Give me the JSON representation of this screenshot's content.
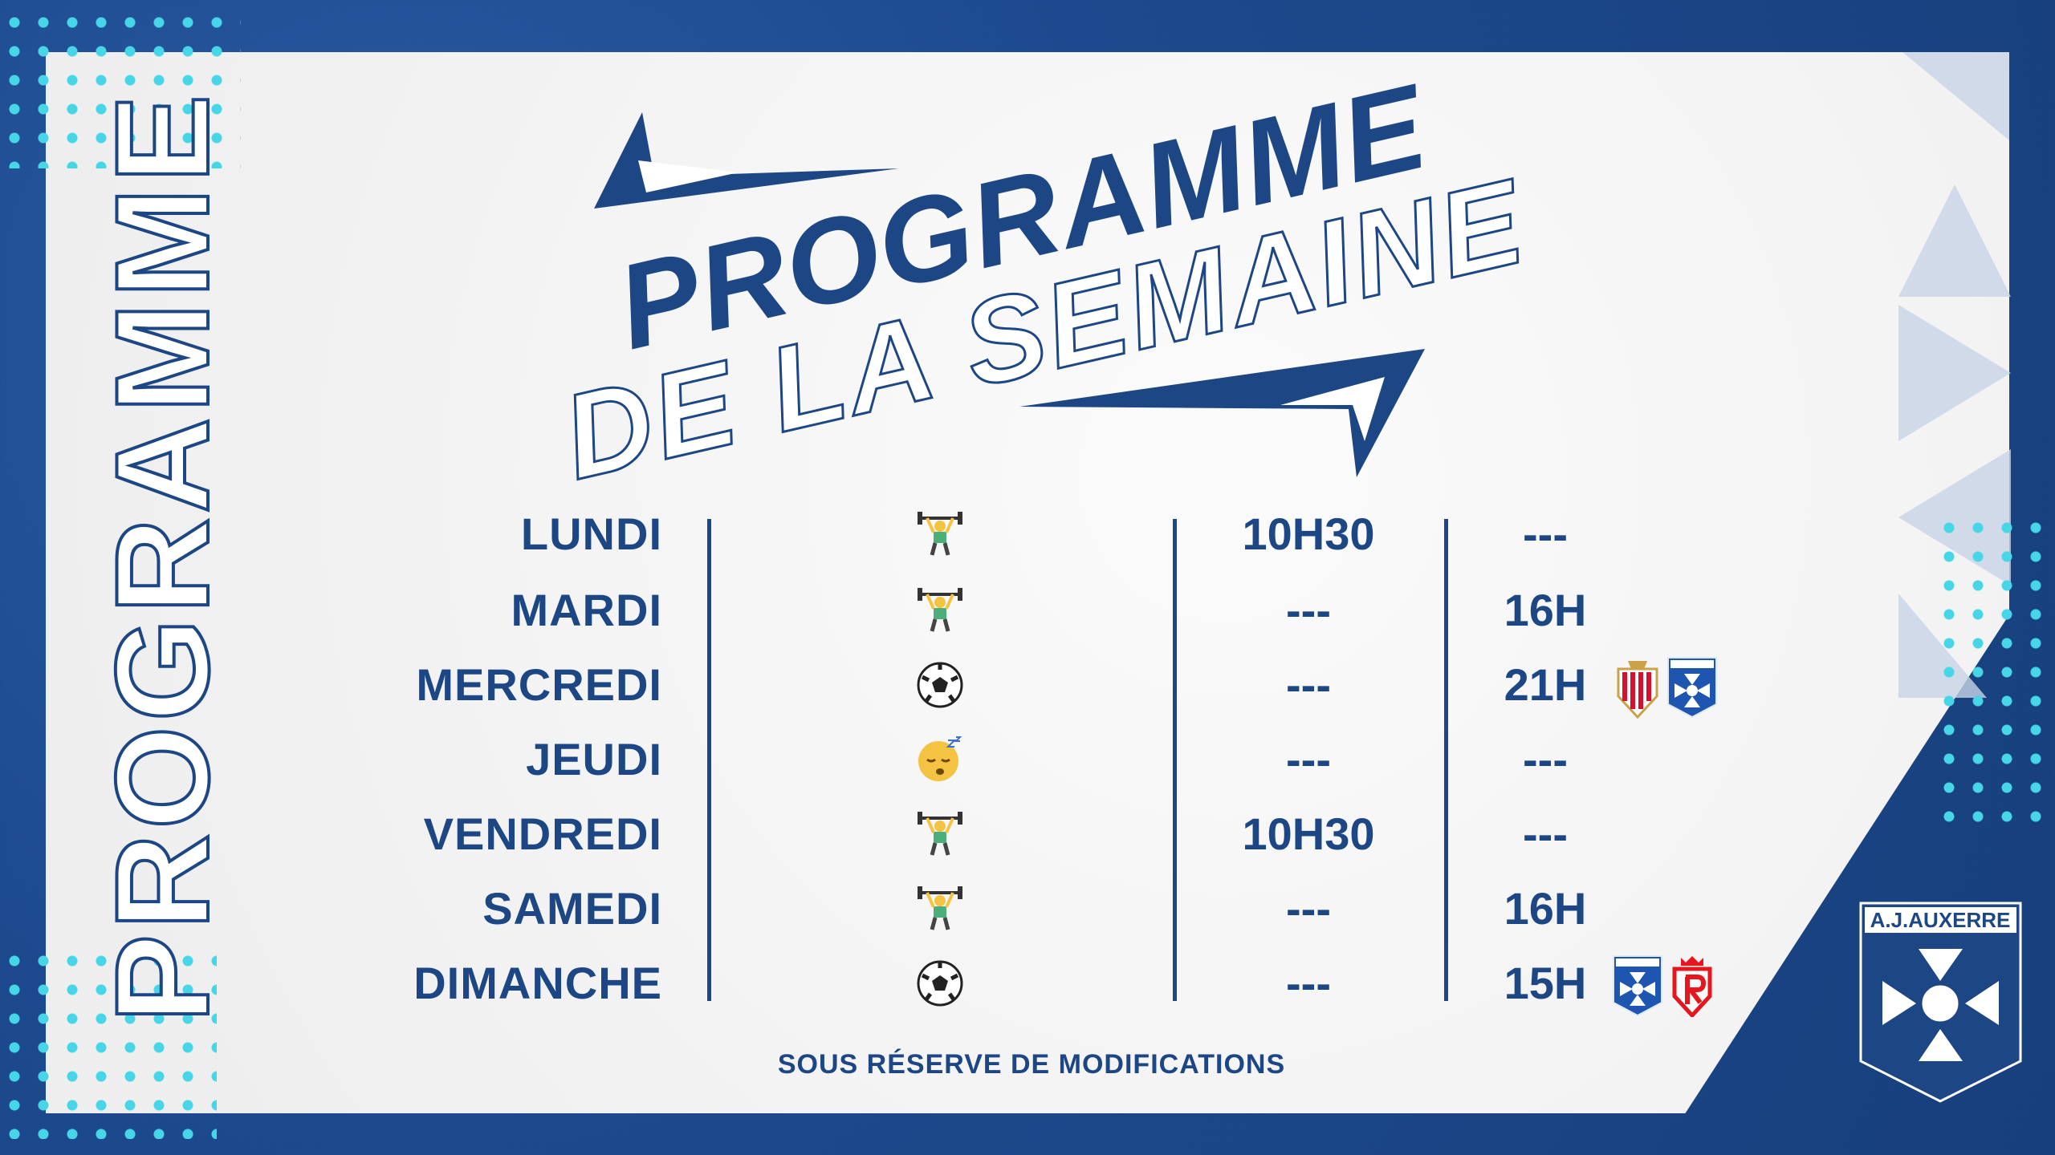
{
  "side_title": "PROGRAMME",
  "title": {
    "line1": "PROGRAMME",
    "line2": "DE LA SEMAINE"
  },
  "rows": [
    {
      "day": "LUNDI",
      "activity_icon": "weightlifting-icon",
      "morning": "10H30",
      "afternoon": "---",
      "logos": []
    },
    {
      "day": "MARDI",
      "activity_icon": "weightlifting-icon",
      "morning": "---",
      "afternoon": "16H",
      "logos": []
    },
    {
      "day": "MERCREDI",
      "activity_icon": "soccer-ball-icon",
      "morning": "---",
      "afternoon": "21H",
      "logos": [
        "AS Monaco",
        "A.J.Auxerre"
      ]
    },
    {
      "day": "JEUDI",
      "activity_icon": "sleeping-face-icon",
      "morning": "---",
      "afternoon": "---",
      "logos": []
    },
    {
      "day": "VENDREDI",
      "activity_icon": "weightlifting-icon",
      "morning": "10H30",
      "afternoon": "---",
      "logos": []
    },
    {
      "day": "SAMEDI",
      "activity_icon": "weightlifting-icon",
      "morning": "---",
      "afternoon": "16H",
      "logos": []
    },
    {
      "day": "DIMANCHE",
      "activity_icon": "soccer-ball-icon",
      "morning": "---",
      "afternoon": "15H",
      "logos": [
        "A.J.Auxerre",
        "Stade de Reims"
      ]
    }
  ],
  "footer": "SOUS RÉSERVE DE MODIFICATIONS",
  "club_logo_text": "A.J.AUXERRE",
  "colors": {
    "navy": "#1d4684",
    "background_blue": "#1d4a8e",
    "dots": "#47d6e8",
    "monaco_red": "#d8102f",
    "reims_red": "#e5161d"
  }
}
